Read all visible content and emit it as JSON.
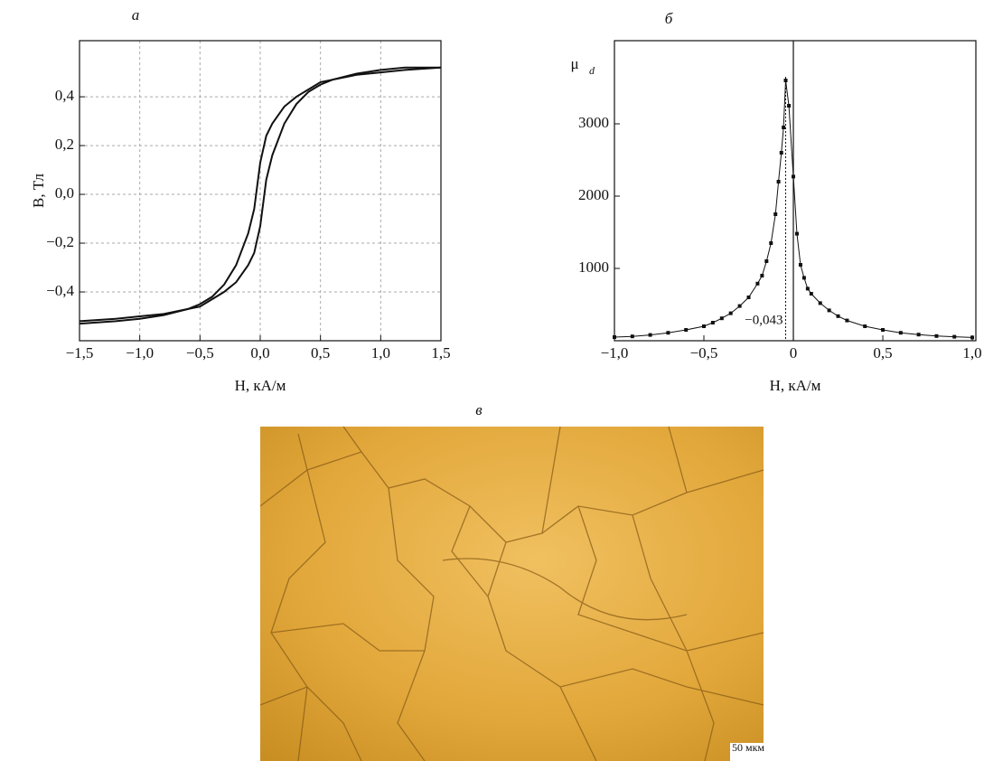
{
  "chart_data": [
    {
      "type": "line",
      "panel_label": "а",
      "xlabel": "H, кА/м",
      "ylabel": "B, Тл",
      "color": "#111111",
      "grid": true,
      "xlim": [
        -1.5,
        1.5
      ],
      "ylim": [
        -0.6,
        0.63
      ],
      "xticks": [
        {
          "value": -1.5,
          "label": "−1,5"
        },
        {
          "value": -1.0,
          "label": "−1,0"
        },
        {
          "value": -0.5,
          "label": "−0,5"
        },
        {
          "value": 0,
          "label": "0,0"
        },
        {
          "value": 0.5,
          "label": "0,5"
        },
        {
          "value": 1.0,
          "label": "1,0"
        },
        {
          "value": 1.5,
          "label": "1,5"
        }
      ],
      "yticks": [
        {
          "value": -0.4,
          "label": "−0,4"
        },
        {
          "value": -0.2,
          "label": "−0,2"
        },
        {
          "value": 0,
          "label": "0,0"
        },
        {
          "value": 0.2,
          "label": "0,2"
        },
        {
          "value": 0.4,
          "label": "0,4"
        }
      ],
      "x": [
        -1.5,
        -1.2,
        -1.0,
        -0.8,
        -0.6,
        -0.5,
        -0.4,
        -0.3,
        -0.2,
        -0.1,
        -0.05,
        0,
        0.05,
        0.1,
        0.2,
        0.3,
        0.4,
        0.5,
        0.6,
        0.8,
        1.0,
        1.2,
        1.5
      ],
      "series": [
        {
          "values": [
            -0.53,
            -0.52,
            -0.51,
            -0.495,
            -0.47,
            -0.45,
            -0.42,
            -0.37,
            -0.29,
            -0.16,
            -0.06,
            0.13,
            0.24,
            0.29,
            0.36,
            0.4,
            0.43,
            0.46,
            0.47,
            0.49,
            0.5,
            0.51,
            0.52
          ]
        },
        {
          "values": [
            -0.52,
            -0.51,
            -0.5,
            -0.49,
            -0.47,
            -0.46,
            -0.43,
            -0.4,
            -0.36,
            -0.29,
            -0.24,
            -0.13,
            0.06,
            0.16,
            0.29,
            0.37,
            0.42,
            0.45,
            0.47,
            0.495,
            0.51,
            0.52,
            0.52
          ]
        }
      ]
    },
    {
      "type": "line",
      "panel_label": "б",
      "xlabel": "H, кА/м",
      "ylabel": "μ",
      "ylabel_sub": "d",
      "color": "#111111",
      "grid": false,
      "markers": true,
      "zero_line": true,
      "xlim": [
        -1.0,
        1.02
      ],
      "ylim": [
        0,
        4150
      ],
      "xticks": [
        {
          "value": -1.0,
          "label": "−1,0"
        },
        {
          "value": -0.5,
          "label": "−0,5"
        },
        0,
        {
          "value": 0.5,
          "label": "0,5"
        },
        {
          "value": 1.0,
          "label": "1,0"
        }
      ],
      "yticks": [
        1000,
        2000,
        3000
      ],
      "annotation": {
        "x": -0.043,
        "label": "−0,043"
      },
      "x": [
        -1.0,
        -0.9,
        -0.8,
        -0.7,
        -0.6,
        -0.5,
        -0.45,
        -0.4,
        -0.35,
        -0.3,
        -0.25,
        -0.2,
        -0.175,
        -0.15,
        -0.125,
        -0.1,
        -0.083,
        -0.067,
        -0.055,
        -0.043,
        -0.025,
        0,
        0.02,
        0.04,
        0.06,
        0.08,
        0.1,
        0.15,
        0.2,
        0.25,
        0.3,
        0.4,
        0.5,
        0.6,
        0.7,
        0.8,
        0.9,
        1.0
      ],
      "series": [
        {
          "values": [
            50,
            60,
            80,
            110,
            150,
            200,
            250,
            310,
            380,
            480,
            600,
            790,
            900,
            1100,
            1350,
            1750,
            2200,
            2600,
            2950,
            3600,
            3250,
            2270,
            1480,
            1050,
            870,
            720,
            650,
            520,
            420,
            340,
            280,
            200,
            150,
            110,
            85,
            65,
            55,
            45
          ]
        }
      ]
    }
  ],
  "image": {
    "panel_label": "в",
    "scale_bar": "50 мкм"
  }
}
